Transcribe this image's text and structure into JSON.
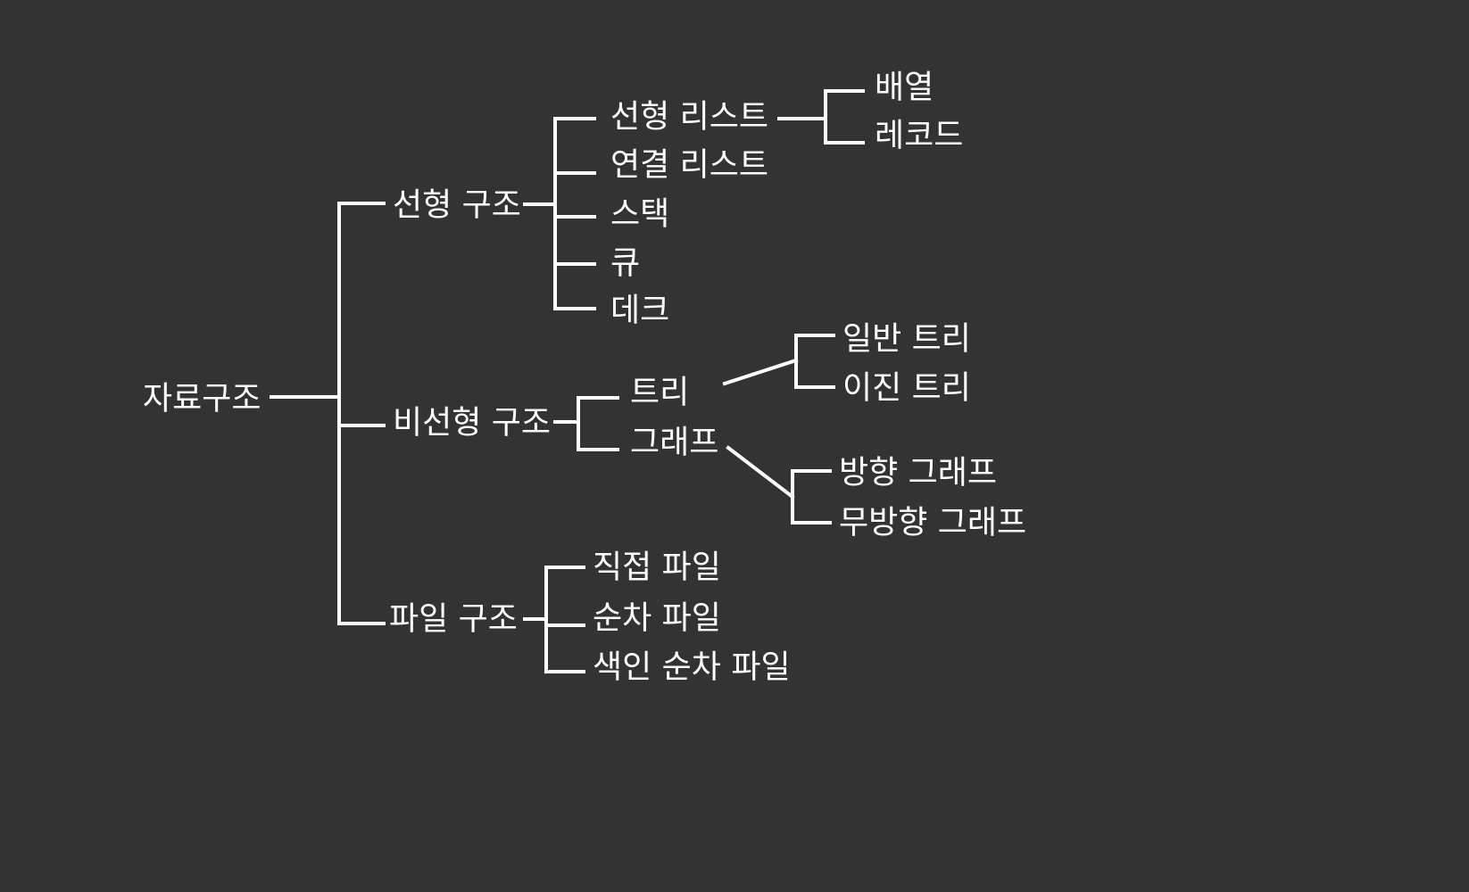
{
  "diagram": {
    "root": "자료구조",
    "linear": {
      "label": "선형 구조",
      "children": [
        "선형 리스트",
        "연결 리스트",
        "스택",
        "큐",
        "데크"
      ],
      "linear_list_children": [
        "배열",
        "레코드"
      ]
    },
    "nonlinear": {
      "label": "비선형 구조",
      "children": [
        "트리",
        "그래프"
      ],
      "tree_children": [
        "일반 트리",
        "이진 트리"
      ],
      "graph_children": [
        "방향 그래프",
        "무방향 그래프"
      ]
    },
    "file": {
      "label": "파일 구조",
      "children": [
        "직접 파일",
        "순차 파일",
        "색인 순차 파일"
      ]
    }
  },
  "colors": {
    "background": "#333333",
    "line": "#ffffff",
    "text": "#ffffff"
  }
}
